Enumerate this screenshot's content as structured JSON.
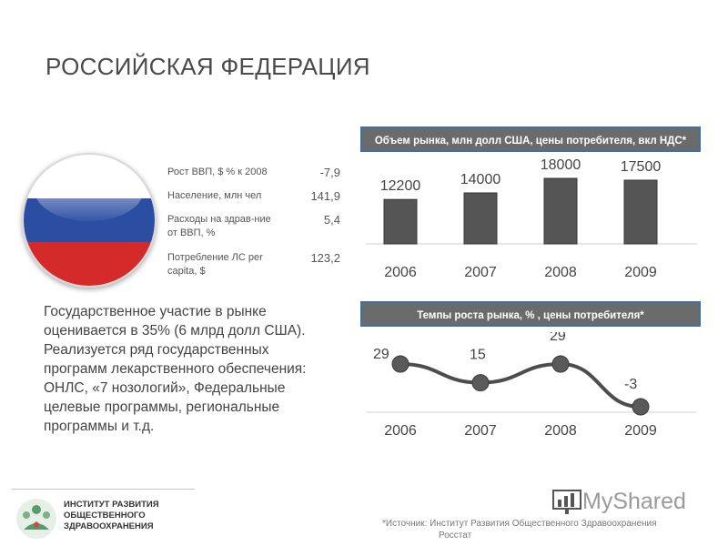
{
  "page": {
    "title": "РОССИЙСКАЯ ФЕДЕРАЦИЯ"
  },
  "flag": {
    "colors": [
      "#ffffff",
      "#2b4ea3",
      "#d42a2a"
    ]
  },
  "stats": [
    {
      "label": "Рост ВВП, $ % к 2008",
      "value": "-7,9"
    },
    {
      "label": "Население, млн чел",
      "value": "141,9"
    },
    {
      "label": "Расходы на здрав-ние от ВВП, %",
      "value": "5,4"
    },
    {
      "label": "Потребление ЛС per capita, $",
      "value": "123,2"
    }
  ],
  "paragraph": "Государственное участие в рынке оценивается в 35% (6 млрд долл США). Реализуется ряд государственных программ лекарственного обеспечения: ОНЛС, «7 нозологий», Федеральные целевые программы, региональные программы и т.д.",
  "chart_data": [
    {
      "type": "bar",
      "title": "Объем рынка, млн долл США, цены потребителя, вкл НДС*",
      "categories": [
        "2006",
        "2007",
        "2008",
        "2009"
      ],
      "values": [
        12200,
        14000,
        18000,
        17500
      ],
      "data_labels": [
        "12200",
        "14000",
        "18000",
        "17500"
      ],
      "ylim": [
        0,
        18000
      ],
      "grid": false,
      "legend": "none",
      "color": "#555555"
    },
    {
      "type": "line",
      "title": "Темпы роста рынка, % , цены потребителя*",
      "categories": [
        "2006",
        "2007",
        "2008",
        "2009"
      ],
      "values": [
        29,
        15,
        29,
        -3
      ],
      "data_labels": [
        "29",
        "15",
        "29",
        "-3"
      ],
      "ylim": [
        -3,
        29
      ],
      "grid": false,
      "legend": "none",
      "color": "#4d4d4d"
    }
  ],
  "footer": {
    "logo_lines": [
      "ИНСТИТУТ РАЗВИТИЯ",
      "ОБЩЕСТВЕННОГО",
      "ЗДРАВООХРАНЕНИЯ"
    ],
    "source_lines": [
      "*Источник: Институт Развития Общественного Здравоохранения",
      "Росстат"
    ],
    "watermark": "MyShared"
  }
}
